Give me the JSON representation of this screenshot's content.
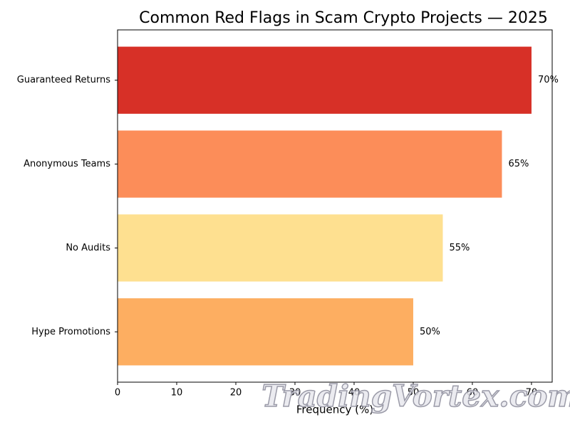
{
  "chart_data": {
    "type": "barh",
    "title": "Common Red Flags in Scam Crypto Projects — 2025",
    "categories": [
      "Guaranteed Returns",
      "Anonymous Teams",
      "No Audits",
      "Hype Promotions"
    ],
    "values": [
      70,
      65,
      55,
      50
    ],
    "value_labels": [
      "70%",
      "65%",
      "55%",
      "50%"
    ],
    "colors": [
      "#d73027",
      "#fc8d59",
      "#fee090",
      "#fdae61"
    ],
    "xlabel": "Frequency (%)",
    "xlim": [
      0,
      73.5
    ],
    "xticks": [
      0,
      10,
      20,
      30,
      40,
      50,
      60,
      70
    ],
    "grid": false
  },
  "watermark": "TradingVortex.com"
}
